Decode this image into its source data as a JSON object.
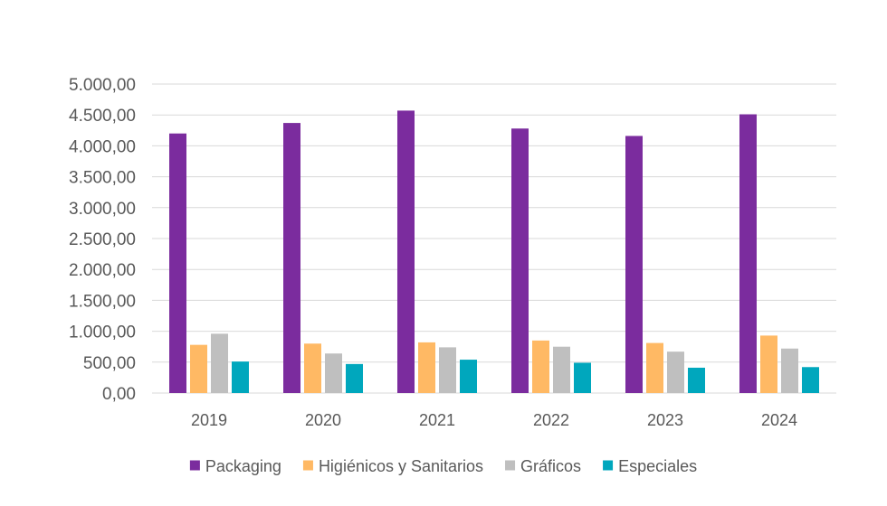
{
  "chart_data": {
    "type": "bar",
    "categories": [
      "2019",
      "2020",
      "2021",
      "2022",
      "2023",
      "2024"
    ],
    "series": [
      {
        "name": "Packaging",
        "color": "#7b2c9e",
        "values": [
          4200,
          4370,
          4570,
          4280,
          4160,
          4510
        ]
      },
      {
        "name": "Higiénicos y Sanitarios",
        "color": "#ffb964",
        "values": [
          780,
          800,
          820,
          850,
          810,
          930
        ]
      },
      {
        "name": "Gráficos",
        "color": "#bfbfbf",
        "values": [
          960,
          640,
          740,
          750,
          670,
          720
        ]
      },
      {
        "name": "Especiales",
        "color": "#00a7bd",
        "values": [
          510,
          470,
          540,
          490,
          410,
          420
        ]
      }
    ],
    "title": "",
    "xlabel": "",
    "ylabel": "",
    "ylim": [
      0,
      5000
    ],
    "yticks": [
      0,
      500,
      1000,
      1500,
      2000,
      2500,
      3000,
      3500,
      4000,
      4500,
      5000
    ],
    "ytick_labels": [
      "0,00",
      "500,00",
      "1.000,00",
      "1.500,00",
      "2.000,00",
      "2.500,00",
      "3.000,00",
      "3.500,00",
      "4.000,00",
      "4.500,00",
      "5.000,00"
    ],
    "grid": true,
    "legend_position": "bottom"
  }
}
